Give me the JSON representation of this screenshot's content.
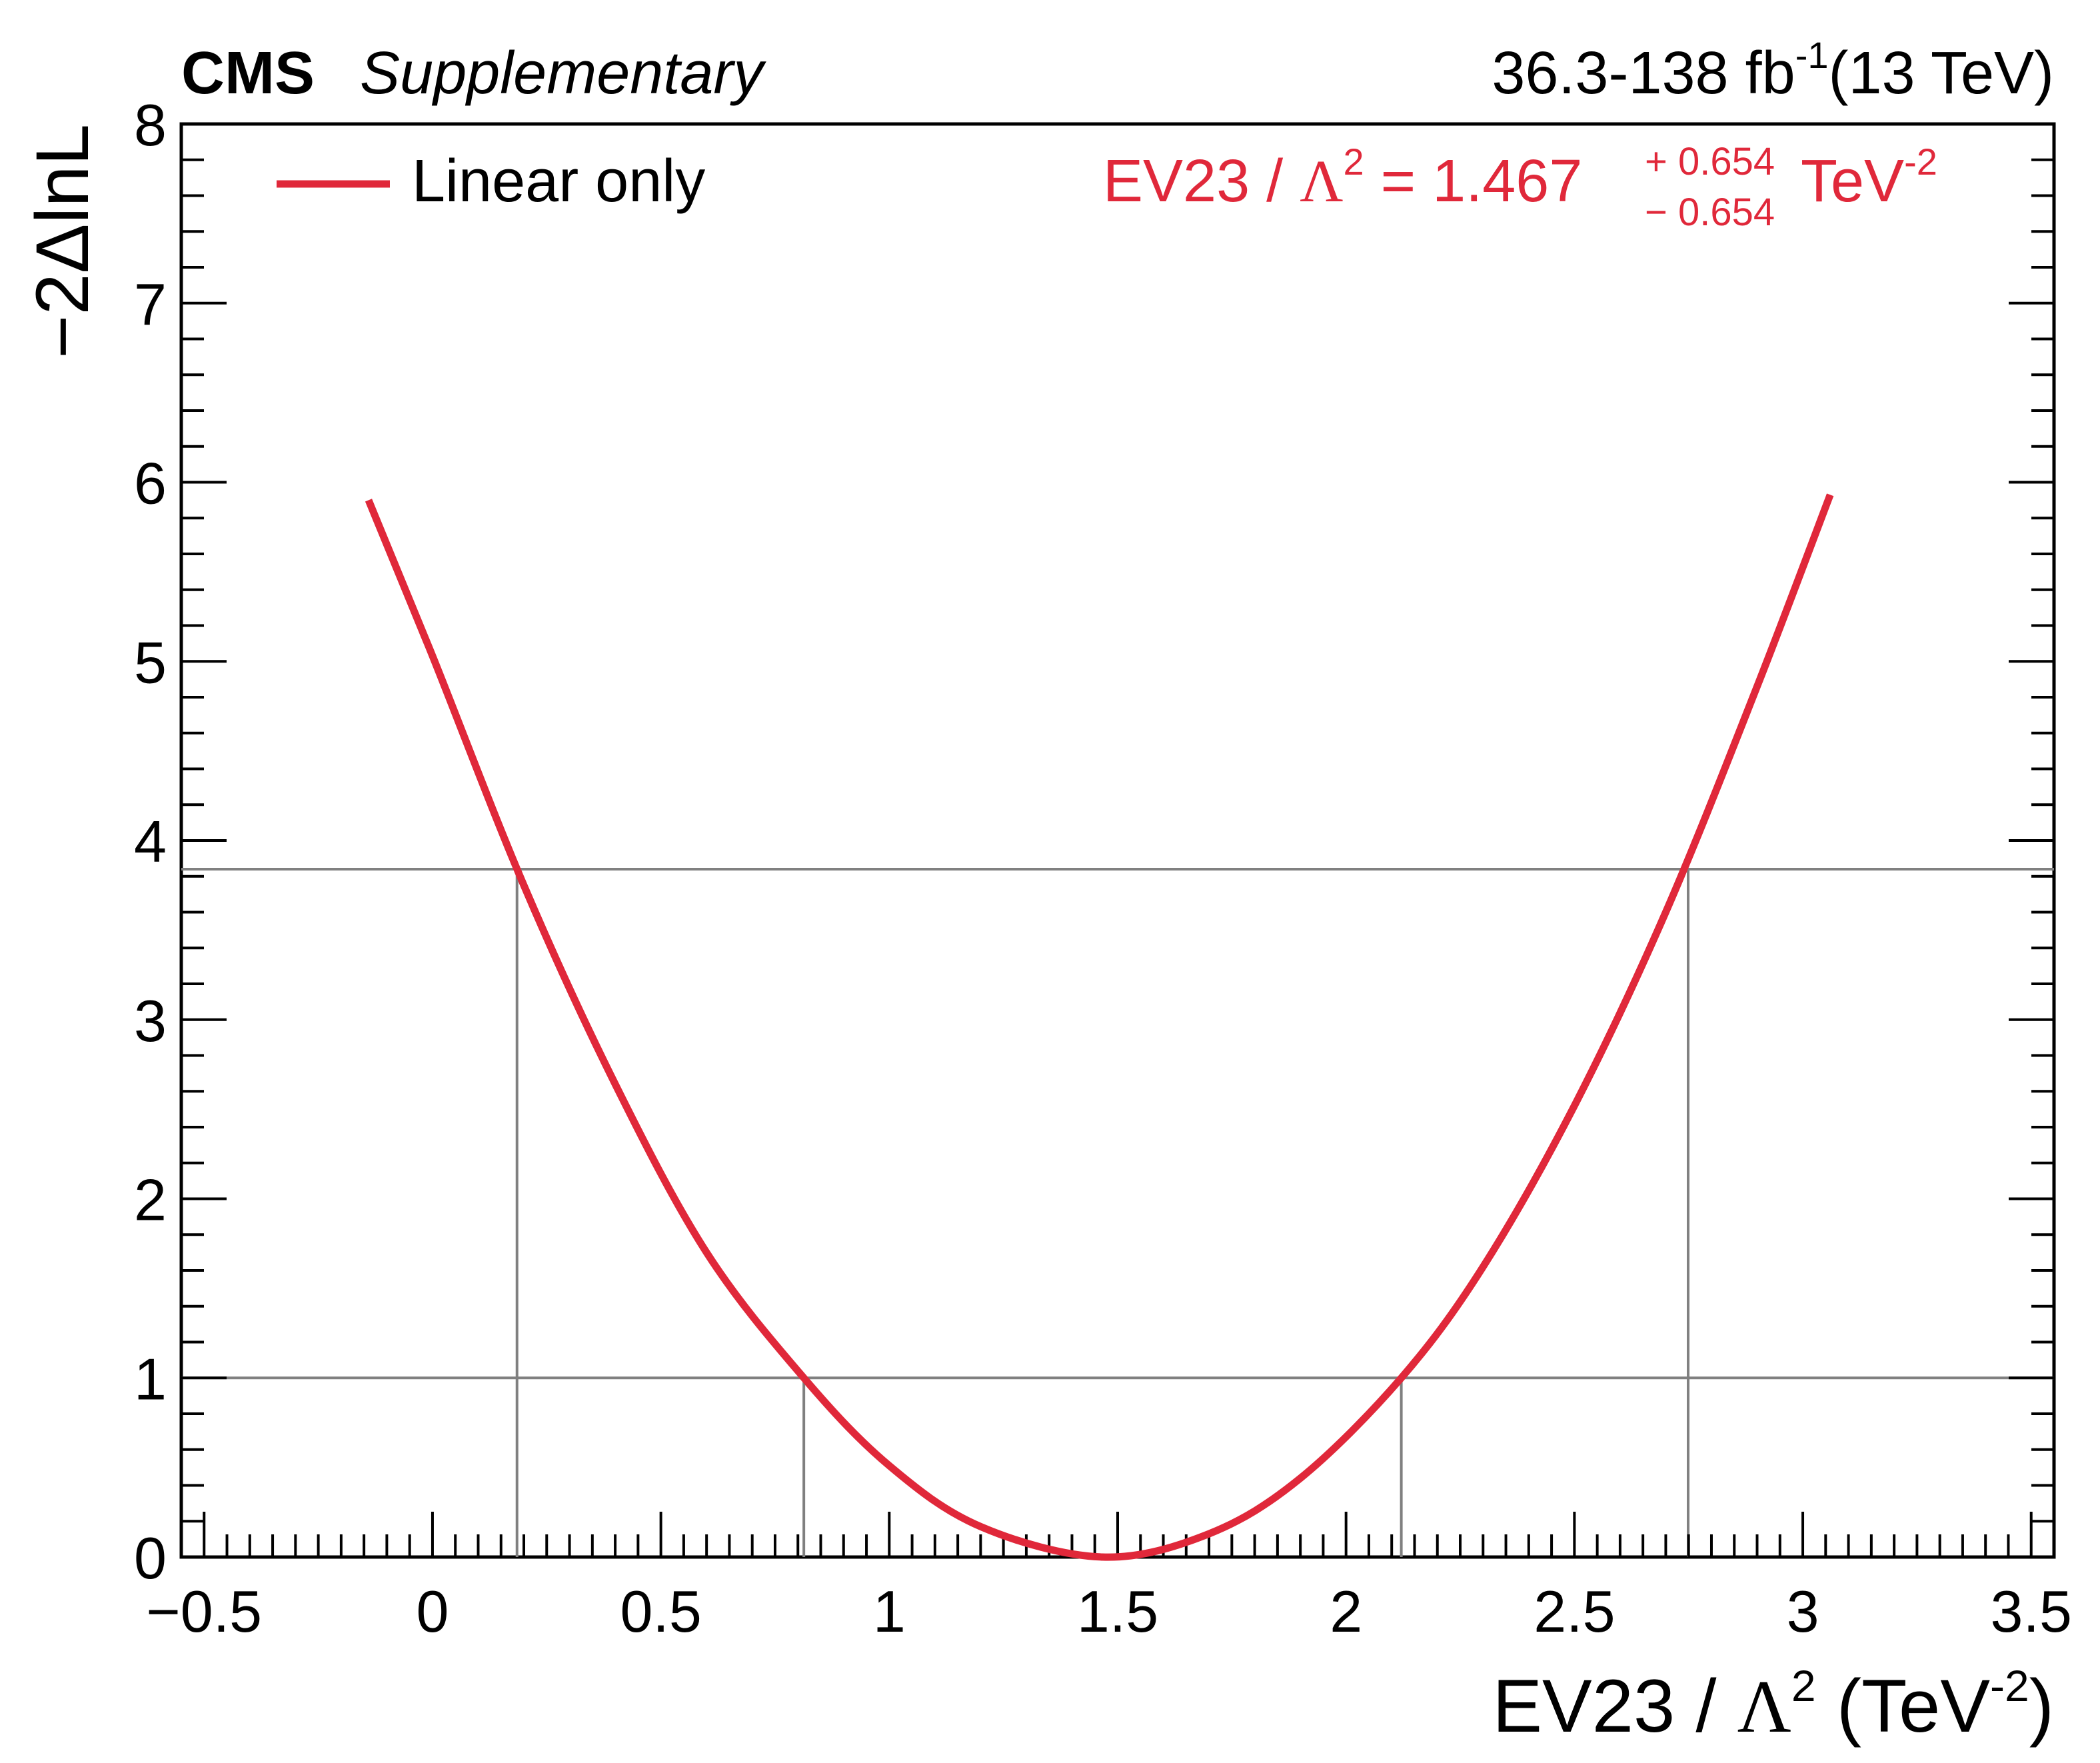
{
  "header": {
    "experiment": "CMS",
    "status": "Supplementary",
    "lumi_main": "36.3-138 fb",
    "lumi_exp": "-1",
    "energy": "(13 TeV)"
  },
  "legend": {
    "entries": [
      "Linear only"
    ]
  },
  "annotation": {
    "prefix": "EV23 / ",
    "lambda": "Λ",
    "lambda_exp": "2",
    "eq_value": " = 1.467",
    "plus_err": "+ 0.654",
    "minus_err": "− 0.654",
    "unit": "TeV",
    "unit_exp": "-2"
  },
  "xaxis": {
    "label_prefix": "EV23 / ",
    "label_lambda": "Λ",
    "label_lambda_exp": "2",
    "label_unit_open": " (TeV",
    "label_unit_exp": "-2",
    "label_close": ")"
  },
  "yaxis": {
    "label": "−2ΔlnL"
  },
  "colors": {
    "curve": "#e0283a",
    "reference_lines": "#808080",
    "frame": "#000000"
  },
  "chart_data": {
    "type": "line",
    "xlim": [
      -0.55,
      3.55
    ],
    "ylim": [
      0,
      8
    ],
    "x_ticks": [
      -0.5,
      0,
      0.5,
      1,
      1.5,
      2,
      2.5,
      3,
      3.5
    ],
    "x_tick_labels": [
      "−0.5",
      "0",
      "0.5",
      "1",
      "1.5",
      "2",
      "2.5",
      "3",
      "3.5"
    ],
    "y_ticks": [
      0,
      1,
      2,
      3,
      4,
      5,
      6,
      7,
      8
    ],
    "y_tick_labels": [
      "0",
      "1",
      "2",
      "3",
      "4",
      "5",
      "6",
      "7",
      "8"
    ],
    "grid": false,
    "legend_position": "top-left",
    "series": [
      {
        "name": "Linear only",
        "color": "#e0283a",
        "x": [
          -0.14,
          0.0,
          0.2,
          0.4,
          0.6,
          0.813,
          1.0,
          1.2,
          1.467,
          1.7,
          1.9,
          2.121,
          2.3,
          2.5,
          2.7,
          2.9,
          3.06
        ],
        "y": [
          5.9,
          5.03,
          3.75,
          2.64,
          1.7,
          1.0,
          0.51,
          0.17,
          0.0,
          0.13,
          0.44,
          1.0,
          1.62,
          2.52,
          3.6,
          4.86,
          5.93
        ]
      }
    ],
    "reference_lines": {
      "horizontal": [
        1.0,
        3.84
      ],
      "vertical": [
        {
          "x": 0.813,
          "y_top": 1.0
        },
        {
          "x": 2.121,
          "y_top": 1.0
        },
        {
          "x": 0.185,
          "y_top": 3.84
        },
        {
          "x": 2.749,
          "y_top": 3.84
        }
      ]
    },
    "best_fit": 1.467,
    "uncertainty_up": 0.654,
    "uncertainty_down": 0.654
  }
}
